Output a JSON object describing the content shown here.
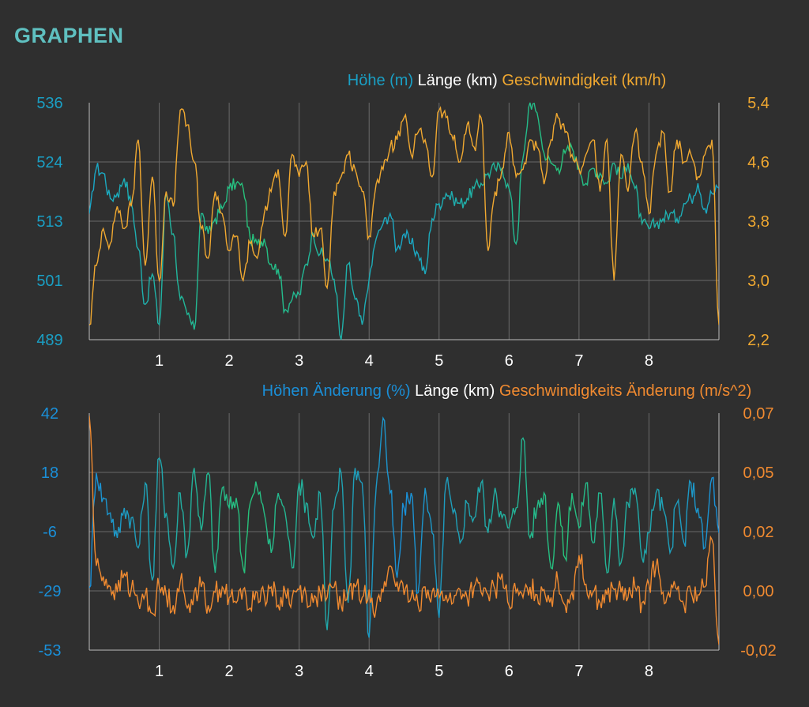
{
  "page": {
    "title": "GRAPHEN",
    "title_color": "#5fc0c0",
    "background": "#2f2f2f",
    "grid_color": "#6a6a6a",
    "tick_color": "#ffffff"
  },
  "chart_data": [
    {
      "type": "line",
      "legend": [
        "Höhe (m)",
        "Länge (km)",
        "Geschwindigkeit (km/h)"
      ],
      "legend_colors": [
        "#1a9fc4",
        "#ffffff",
        "#f0a830"
      ],
      "xlabel": "Länge (km)",
      "xlim": [
        0,
        9
      ],
      "x_ticks": [
        "1",
        "2",
        "3",
        "4",
        "5",
        "6",
        "7",
        "8"
      ],
      "y_left_ticks": [
        "489",
        "501",
        "513",
        "524",
        "536"
      ],
      "y_right_ticks": [
        "2,2",
        "3,0",
        "3,8",
        "4,6",
        "5,4"
      ],
      "ylim_left": [
        489,
        536
      ],
      "ylim_right": [
        2.2,
        5.4
      ],
      "grid": true,
      "series": [
        {
          "name": "Höhe (m)",
          "axis": "left",
          "colors": [
            "#1aa6c8",
            "#27c27a"
          ],
          "x": [
            0.0,
            0.1,
            0.2,
            0.3,
            0.4,
            0.5,
            0.6,
            0.7,
            0.8,
            0.9,
            1.0,
            1.1,
            1.2,
            1.3,
            1.4,
            1.5,
            1.6,
            1.7,
            1.8,
            1.9,
            2.0,
            2.1,
            2.2,
            2.3,
            2.4,
            2.5,
            2.6,
            2.7,
            2.8,
            2.9,
            3.0,
            3.1,
            3.2,
            3.3,
            3.4,
            3.5,
            3.6,
            3.7,
            3.8,
            3.9,
            4.0,
            4.1,
            4.2,
            4.3,
            4.4,
            4.5,
            4.6,
            4.7,
            4.8,
            4.9,
            5.0,
            5.1,
            5.2,
            5.3,
            5.4,
            5.5,
            5.6,
            5.7,
            5.8,
            5.9,
            6.0,
            6.1,
            6.2,
            6.3,
            6.4,
            6.5,
            6.6,
            6.7,
            6.8,
            6.9,
            7.0,
            7.1,
            7.2,
            7.3,
            7.4,
            7.5,
            7.6,
            7.7,
            7.8,
            7.9,
            8.0,
            8.1,
            8.2,
            8.3,
            8.4,
            8.5,
            8.6,
            8.7,
            8.8,
            8.9,
            9.0
          ],
          "values": [
            514,
            523,
            522,
            517,
            518,
            521,
            516,
            507,
            496,
            502,
            492,
            518,
            510,
            497,
            494,
            491,
            514,
            510,
            513,
            515,
            519,
            520,
            519,
            509,
            508,
            509,
            504,
            503,
            495,
            497,
            498,
            504,
            510,
            506,
            505,
            501,
            489,
            504,
            497,
            492,
            501,
            509,
            512,
            514,
            507,
            510,
            508,
            506,
            502,
            513,
            516,
            518,
            517,
            516,
            517,
            519,
            520,
            522,
            523,
            523,
            519,
            508,
            525,
            536,
            534,
            526,
            524,
            523,
            526,
            527,
            523,
            520,
            523,
            522,
            520,
            524,
            521,
            524,
            519,
            512,
            511,
            512,
            513,
            514,
            513,
            516,
            517,
            520,
            515,
            518,
            519
          ]
        },
        {
          "name": "Geschwindigkeit (km/h)",
          "axis": "right",
          "color": "#f0a830",
          "x": [
            0.0,
            0.1,
            0.2,
            0.3,
            0.4,
            0.5,
            0.6,
            0.7,
            0.8,
            0.9,
            1.0,
            1.1,
            1.2,
            1.3,
            1.4,
            1.5,
            1.6,
            1.7,
            1.8,
            1.9,
            2.0,
            2.1,
            2.2,
            2.3,
            2.4,
            2.5,
            2.6,
            2.7,
            2.8,
            2.9,
            3.0,
            3.1,
            3.2,
            3.3,
            3.4,
            3.5,
            3.6,
            3.7,
            3.8,
            3.9,
            4.0,
            4.1,
            4.2,
            4.3,
            4.4,
            4.5,
            4.6,
            4.7,
            4.8,
            4.9,
            5.0,
            5.1,
            5.2,
            5.3,
            5.4,
            5.5,
            5.6,
            5.7,
            5.8,
            5.9,
            6.0,
            6.1,
            6.2,
            6.3,
            6.4,
            6.5,
            6.6,
            6.7,
            6.8,
            6.9,
            7.0,
            7.1,
            7.2,
            7.3,
            7.4,
            7.5,
            7.6,
            7.7,
            7.8,
            7.9,
            8.0,
            8.1,
            8.2,
            8.3,
            8.4,
            8.5,
            8.6,
            8.7,
            8.8,
            8.9,
            9.0
          ],
          "values": [
            2.4,
            3.2,
            3.7,
            3.5,
            4.0,
            3.7,
            4.0,
            4.9,
            3.2,
            4.4,
            3.0,
            4.2,
            4.0,
            5.3,
            5.1,
            4.6,
            3.7,
            3.3,
            4.2,
            3.9,
            3.4,
            3.6,
            3.0,
            3.5,
            3.3,
            3.9,
            4.2,
            4.5,
            3.6,
            4.7,
            4.4,
            4.6,
            3.6,
            3.7,
            2.9,
            4.2,
            4.4,
            4.7,
            4.5,
            4.2,
            3.6,
            4.3,
            4.5,
            4.8,
            4.9,
            5.2,
            4.7,
            5.0,
            4.9,
            4.4,
            5.3,
            5.2,
            4.9,
            4.6,
            5.1,
            4.8,
            5.2,
            3.4,
            4.2,
            4.5,
            5.0,
            4.4,
            4.5,
            4.9,
            4.8,
            4.3,
            4.9,
            5.2,
            5.0,
            4.7,
            4.5,
            4.7,
            4.9,
            4.2,
            4.9,
            3.0,
            4.7,
            4.2,
            5.0,
            4.6,
            3.9,
            4.7,
            5.0,
            4.2,
            4.9,
            4.6,
            4.7,
            4.4,
            4.7,
            4.9,
            2.4
          ]
        }
      ]
    },
    {
      "type": "line",
      "legend": [
        "Höhen Änderung (%)",
        "Länge (km)",
        "Geschwindigkeits Änderung (m/s^2)"
      ],
      "legend_colors": [
        "#1a8fd8",
        "#ffffff",
        "#f08a30"
      ],
      "xlabel": "Länge (km)",
      "xlim": [
        0,
        9
      ],
      "x_ticks": [
        "1",
        "2",
        "3",
        "4",
        "5",
        "6",
        "7",
        "8"
      ],
      "y_left_ticks": [
        "-53",
        "-29",
        "-6",
        "18",
        "42"
      ],
      "y_right_ticks": [
        "-0,02",
        "0,00",
        "0,02",
        "0,05",
        "0,07"
      ],
      "ylim_left": [
        -53,
        42
      ],
      "ylim_right": [
        -0.02,
        0.07
      ],
      "grid": true,
      "series": [
        {
          "name": "Höhen Änderung (%)",
          "axis": "left",
          "colors": [
            "#1a8fd8",
            "#27c27a"
          ],
          "x": [
            0.0,
            0.1,
            0.2,
            0.3,
            0.4,
            0.5,
            0.6,
            0.7,
            0.8,
            0.9,
            1.0,
            1.1,
            1.2,
            1.3,
            1.4,
            1.5,
            1.6,
            1.7,
            1.8,
            1.9,
            2.0,
            2.1,
            2.2,
            2.3,
            2.4,
            2.5,
            2.6,
            2.7,
            2.8,
            2.9,
            3.0,
            3.1,
            3.2,
            3.3,
            3.4,
            3.5,
            3.6,
            3.7,
            3.8,
            3.9,
            4.0,
            4.1,
            4.2,
            4.3,
            4.4,
            4.5,
            4.6,
            4.7,
            4.8,
            4.9,
            5.0,
            5.1,
            5.2,
            5.3,
            5.4,
            5.5,
            5.6,
            5.7,
            5.8,
            5.9,
            6.0,
            6.1,
            6.2,
            6.3,
            6.4,
            6.5,
            6.6,
            6.7,
            6.8,
            6.9,
            7.0,
            7.1,
            7.2,
            7.3,
            7.4,
            7.5,
            7.6,
            7.7,
            7.8,
            7.9,
            8.0,
            8.1,
            8.2,
            8.3,
            8.4,
            8.5,
            8.6,
            8.7,
            8.8,
            8.9,
            9.0
          ],
          "values": [
            -28,
            18,
            8,
            2,
            -8,
            4,
            0,
            -12,
            14,
            -25,
            24,
            2,
            -20,
            10,
            -14,
            20,
            -5,
            18,
            -22,
            12,
            4,
            8,
            -20,
            6,
            12,
            2,
            -14,
            10,
            2,
            -20,
            14,
            6,
            -8,
            10,
            -45,
            4,
            18,
            -34,
            20,
            14,
            -48,
            12,
            40,
            10,
            -24,
            4,
            10,
            -30,
            12,
            -6,
            -40,
            14,
            2,
            -10,
            6,
            0,
            14,
            -6,
            12,
            0,
            -4,
            4,
            32,
            -8,
            4,
            10,
            -20,
            6,
            -16,
            10,
            -4,
            14,
            -10,
            10,
            -22,
            8,
            -18,
            6,
            12,
            -16,
            -6,
            10,
            4,
            -14,
            6,
            -10,
            14,
            4,
            -12,
            16,
            -6
          ]
        },
        {
          "name": "Geschwindigkeits Änderung (m/s^2)",
          "axis": "right",
          "color": "#f08a30",
          "x": [
            0.0,
            0.1,
            0.2,
            0.3,
            0.4,
            0.5,
            0.6,
            0.7,
            0.8,
            0.9,
            1.0,
            1.1,
            1.2,
            1.3,
            1.4,
            1.5,
            1.6,
            1.7,
            1.8,
            1.9,
            2.0,
            2.1,
            2.2,
            2.3,
            2.4,
            2.5,
            2.6,
            2.7,
            2.8,
            2.9,
            3.0,
            3.1,
            3.2,
            3.3,
            3.4,
            3.5,
            3.6,
            3.7,
            3.8,
            3.9,
            4.0,
            4.1,
            4.2,
            4.3,
            4.4,
            4.5,
            4.6,
            4.7,
            4.8,
            4.9,
            5.0,
            5.1,
            5.2,
            5.3,
            5.4,
            5.5,
            5.6,
            5.7,
            5.8,
            5.9,
            6.0,
            6.1,
            6.2,
            6.3,
            6.4,
            6.5,
            6.6,
            6.7,
            6.8,
            6.9,
            7.0,
            7.1,
            7.2,
            7.3,
            7.4,
            7.5,
            7.6,
            7.7,
            7.8,
            7.9,
            8.0,
            8.1,
            8.2,
            8.3,
            8.4,
            8.5,
            8.6,
            8.7,
            8.8,
            8.9,
            9.0
          ],
          "values": [
            0.069,
            0.012,
            0.008,
            0.004,
            0.002,
            0.009,
            0.003,
            -0.002,
            0.001,
            -0.006,
            0.004,
            0.001,
            -0.003,
            0.006,
            -0.004,
            0.002,
            0.004,
            -0.003,
            0.002,
            0.004,
            0.0,
            -0.002,
            0.003,
            -0.004,
            0.002,
            0.001,
            0.004,
            -0.003,
            0.002,
            0.0,
            0.003,
            0.001,
            -0.002,
            0.002,
            0.0,
            0.004,
            -0.003,
            0.002,
            0.004,
            0.0,
            0.003,
            -0.004,
            0.002,
            0.012,
            0.006,
            0.001,
            0.0,
            -0.003,
            0.004,
            0.002,
            0.0,
            0.001,
            -0.002,
            0.003,
            0.0,
            0.004,
            0.002,
            0.001,
            0.003,
            0.009,
            -0.003,
            0.002,
            0.0,
            0.004,
            0.001,
            0.003,
            0.0,
            0.006,
            -0.003,
            0.002,
            0.016,
            0.005,
            0.002,
            -0.002,
            0.001,
            0.003,
            0.002,
            0.0,
            0.004,
            -0.002,
            0.005,
            0.012,
            0.002,
            0.0,
            0.003,
            -0.003,
            0.002,
            0.001,
            0.004,
            0.022,
            -0.018
          ]
        }
      ]
    }
  ]
}
